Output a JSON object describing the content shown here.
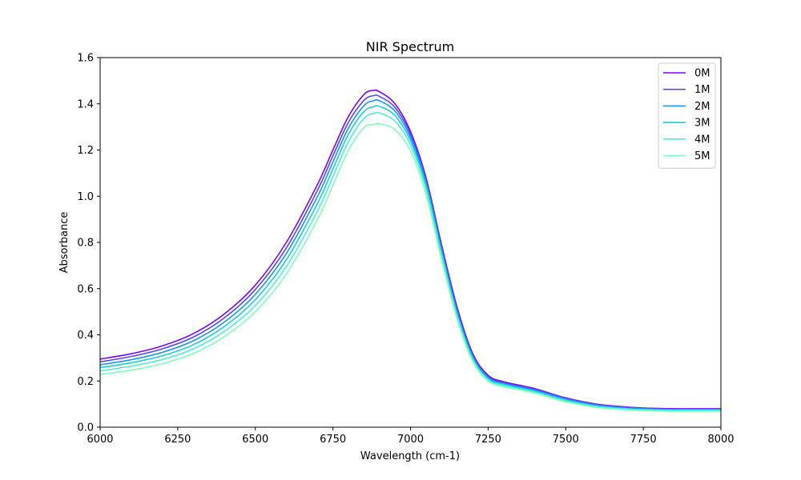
{
  "chart_data": {
    "type": "line",
    "title": "NIR Spectrum",
    "xlabel": "Wavelength (cm-1)",
    "ylabel": "Absorbance",
    "xlim": [
      6000,
      8000
    ],
    "ylim": [
      0.0,
      1.6
    ],
    "xticks": [
      "6000",
      "6250",
      "6500",
      "6750",
      "7000",
      "7250",
      "7500",
      "7750",
      "8000"
    ],
    "yticks": [
      "0.0",
      "0.2",
      "0.4",
      "0.6",
      "0.8",
      "1.0",
      "1.2",
      "1.4",
      "1.6"
    ],
    "grid": false,
    "legend_position": "top-right",
    "x": [
      6000,
      6100,
      6200,
      6300,
      6400,
      6500,
      6600,
      6700,
      6750,
      6800,
      6850,
      6880,
      6900,
      6950,
      7000,
      7050,
      7100,
      7150,
      7200,
      7250,
      7300,
      7400,
      7500,
      7600,
      7700,
      7800,
      7900,
      8000
    ],
    "series": [
      {
        "name": "0M",
        "color": "#7f00ff",
        "values": [
          0.295,
          0.318,
          0.352,
          0.405,
          0.49,
          0.615,
          0.8,
          1.05,
          1.2,
          1.345,
          1.44,
          1.458,
          1.452,
          1.4,
          1.28,
          1.08,
          0.79,
          0.52,
          0.32,
          0.225,
          0.197,
          0.167,
          0.127,
          0.1,
          0.087,
          0.081,
          0.08,
          0.08
        ]
      },
      {
        "name": "1M",
        "color": "#4b4bfb",
        "values": [
          0.283,
          0.306,
          0.339,
          0.39,
          0.473,
          0.596,
          0.776,
          1.025,
          1.175,
          1.32,
          1.415,
          1.435,
          1.432,
          1.384,
          1.268,
          1.07,
          0.78,
          0.51,
          0.314,
          0.22,
          0.193,
          0.164,
          0.125,
          0.098,
          0.085,
          0.079,
          0.078,
          0.078
        ]
      },
      {
        "name": "2M",
        "color": "#1996f3",
        "values": [
          0.27,
          0.292,
          0.324,
          0.374,
          0.455,
          0.575,
          0.752,
          0.998,
          1.148,
          1.295,
          1.392,
          1.413,
          1.413,
          1.368,
          1.255,
          1.058,
          0.768,
          0.5,
          0.307,
          0.215,
          0.189,
          0.16,
          0.122,
          0.095,
          0.083,
          0.077,
          0.076,
          0.076
        ]
      },
      {
        "name": "3M",
        "color": "#18cde3",
        "values": [
          0.258,
          0.279,
          0.309,
          0.357,
          0.436,
          0.552,
          0.725,
          0.968,
          1.118,
          1.268,
          1.367,
          1.387,
          1.389,
          1.349,
          1.24,
          1.046,
          0.756,
          0.49,
          0.3,
          0.21,
          0.185,
          0.156,
          0.118,
          0.092,
          0.08,
          0.075,
          0.074,
          0.074
        ]
      },
      {
        "name": "4M",
        "color": "#4cf2ce",
        "values": [
          0.244,
          0.264,
          0.293,
          0.339,
          0.415,
          0.527,
          0.695,
          0.935,
          1.085,
          1.236,
          1.337,
          1.358,
          1.36,
          1.325,
          1.222,
          1.03,
          0.742,
          0.48,
          0.293,
          0.205,
          0.181,
          0.152,
          0.114,
          0.089,
          0.078,
          0.073,
          0.072,
          0.072
        ]
      },
      {
        "name": "5M",
        "color": "#80ffb4",
        "values": [
          0.228,
          0.247,
          0.275,
          0.319,
          0.392,
          0.5,
          0.663,
          0.898,
          1.047,
          1.198,
          1.297,
          1.31,
          1.314,
          1.288,
          1.196,
          1.008,
          0.726,
          0.468,
          0.286,
          0.2,
          0.176,
          0.148,
          0.11,
          0.086,
          0.075,
          0.07,
          0.069,
          0.069
        ]
      }
    ]
  }
}
